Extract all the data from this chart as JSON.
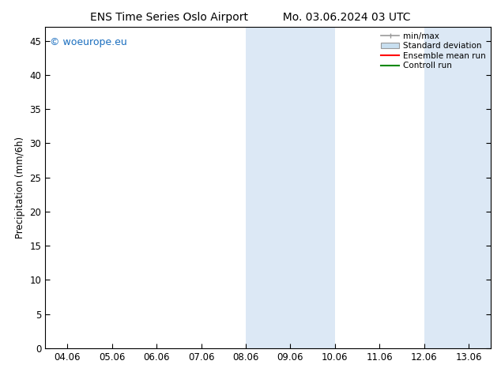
{
  "title_left": "ENS Time Series Oslo Airport",
  "title_right": "Mo. 03.06.2024 03 UTC",
  "ylabel": "Precipitation (mm/6h)",
  "xlabel": "",
  "xtick_labels": [
    "04.06",
    "05.06",
    "06.06",
    "07.06",
    "08.06",
    "09.06",
    "10.06",
    "11.06",
    "12.06",
    "13.06"
  ],
  "x_positions": [
    4,
    5,
    6,
    7,
    8,
    9,
    10,
    11,
    12,
    13
  ],
  "xlim": [
    3.5,
    13.5
  ],
  "ylim": [
    0,
    47
  ],
  "yticks": [
    0,
    5,
    10,
    15,
    20,
    25,
    30,
    35,
    40,
    45
  ],
  "shaded_regions": [
    {
      "x_start": 8.0,
      "x_end": 10.0
    },
    {
      "x_start": 12.0,
      "x_end": 13.5
    }
  ],
  "shaded_color": "#dce8f5",
  "background_color": "#ffffff",
  "plot_bg_color": "#ffffff",
  "watermark_text": "© woeurope.eu",
  "watermark_color": "#1a6ebf",
  "legend_entries": [
    {
      "label": "min/max",
      "color": "#999999",
      "lw": 1.2,
      "style": "errbar"
    },
    {
      "label": "Standard deviation",
      "color": "#c8dff0",
      "lw": 5,
      "style": "bar"
    },
    {
      "label": "Ensemble mean run",
      "color": "#ff0000",
      "lw": 1.5,
      "style": "line"
    },
    {
      "label": "Controll run",
      "color": "#008800",
      "lw": 1.5,
      "style": "line"
    }
  ],
  "title_fontsize": 10,
  "tick_fontsize": 8.5,
  "ylabel_fontsize": 8.5,
  "legend_fontsize": 7.5,
  "watermark_fontsize": 9
}
